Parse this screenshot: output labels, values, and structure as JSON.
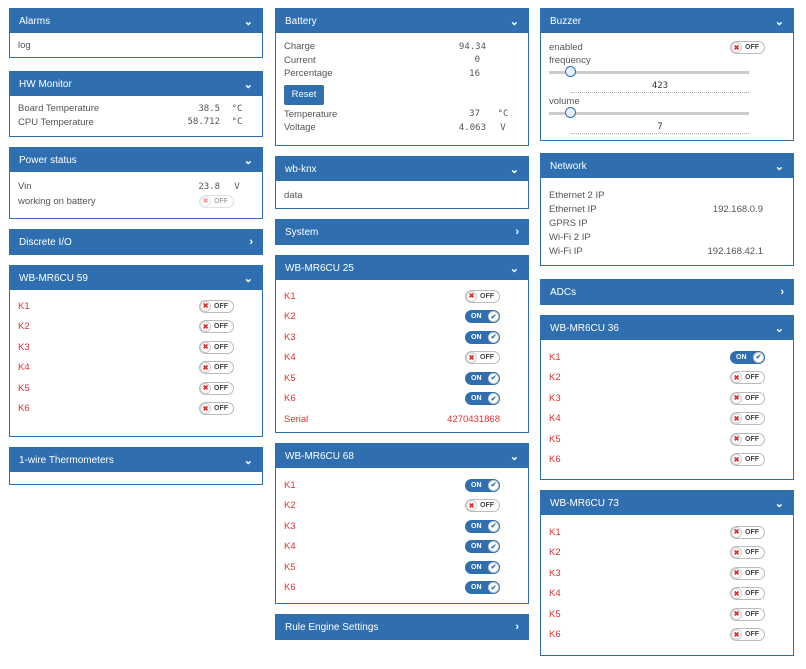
{
  "alarms": {
    "title": "Alarms",
    "log": "log"
  },
  "hw": {
    "title": "HW Monitor",
    "rows": [
      {
        "label": "Board Temperature",
        "value": "38.5",
        "unit": "°C"
      },
      {
        "label": "CPU Temperature",
        "value": "58.712",
        "unit": "°C"
      }
    ]
  },
  "power": {
    "title": "Power status",
    "vin_label": "Vin",
    "vin_value": "23.8",
    "vin_unit": "V",
    "battery_label": "working on battery",
    "battery_state": "OFF"
  },
  "discrete": {
    "title": "Discrete I/O"
  },
  "mr59": {
    "title": "WB-MR6CU 59",
    "relays": [
      {
        "label": "K1",
        "state": "OFF"
      },
      {
        "label": "K2",
        "state": "OFF"
      },
      {
        "label": "K3",
        "state": "OFF"
      },
      {
        "label": "K4",
        "state": "OFF"
      },
      {
        "label": "K5",
        "state": "OFF"
      },
      {
        "label": "K6",
        "state": "OFF"
      }
    ]
  },
  "onewire": {
    "title": "1-wire Thermometers"
  },
  "battery": {
    "title": "Battery",
    "rows": [
      {
        "label": "Charge",
        "value": "94.34",
        "unit": ""
      },
      {
        "label": "Current",
        "value": "0",
        "unit": ""
      },
      {
        "label": "Percentage",
        "value": "16",
        "unit": ""
      }
    ],
    "reset_label": "Reset",
    "rows2": [
      {
        "label": "Temperature",
        "value": "37",
        "unit": "°C"
      },
      {
        "label": "Voltage",
        "value": "4.063",
        "unit": "V"
      }
    ]
  },
  "knx": {
    "title": "wb-knx",
    "data": "data"
  },
  "system": {
    "title": "System"
  },
  "mr25": {
    "title": "WB-MR6CU 25",
    "relays": [
      {
        "label": "K1",
        "state": "OFF"
      },
      {
        "label": "K2",
        "state": "ON"
      },
      {
        "label": "K3",
        "state": "ON"
      },
      {
        "label": "K4",
        "state": "OFF"
      },
      {
        "label": "K5",
        "state": "ON"
      },
      {
        "label": "K6",
        "state": "ON"
      }
    ],
    "serial_label": "Serial",
    "serial_value": "4270431868"
  },
  "mr68": {
    "title": "WB-MR6CU 68",
    "relays": [
      {
        "label": "K1",
        "state": "ON"
      },
      {
        "label": "K2",
        "state": "OFF"
      },
      {
        "label": "K3",
        "state": "ON"
      },
      {
        "label": "K4",
        "state": "ON"
      },
      {
        "label": "K5",
        "state": "ON"
      },
      {
        "label": "K6",
        "state": "ON"
      }
    ]
  },
  "rules": {
    "title": "Rule Engine Settings"
  },
  "buzzer": {
    "title": "Buzzer",
    "enabled_label": "enabled",
    "enabled_state": "OFF",
    "frequency_label": "frequency",
    "frequency_value": "423",
    "frequency_level": 0.0,
    "volume_label": "volume",
    "volume_value": "7",
    "volume_level": 0.0
  },
  "network": {
    "title": "Network",
    "rows": [
      {
        "label": "Ethernet 2 IP",
        "value": ""
      },
      {
        "label": "Ethernet IP",
        "value": "192.168.0.9"
      },
      {
        "label": "GPRS IP",
        "value": ""
      },
      {
        "label": "Wi-Fi 2 IP",
        "value": ""
      },
      {
        "label": "Wi-Fi IP",
        "value": "192.168.42.1"
      }
    ]
  },
  "adcs": {
    "title": "ADCs"
  },
  "mr36": {
    "title": "WB-MR6CU 36",
    "relays": [
      {
        "label": "K1",
        "state": "ON"
      },
      {
        "label": "K2",
        "state": "OFF"
      },
      {
        "label": "K3",
        "state": "OFF"
      },
      {
        "label": "K4",
        "state": "OFF"
      },
      {
        "label": "K5",
        "state": "OFF"
      },
      {
        "label": "K6",
        "state": "OFF"
      }
    ]
  },
  "mr73": {
    "title": "WB-MR6CU 73",
    "relays": [
      {
        "label": "K1",
        "state": "OFF"
      },
      {
        "label": "K2",
        "state": "OFF"
      },
      {
        "label": "K3",
        "state": "OFF"
      },
      {
        "label": "K4",
        "state": "OFF"
      },
      {
        "label": "K5",
        "state": "OFF"
      },
      {
        "label": "K6",
        "state": "OFF"
      }
    ]
  },
  "icons": {
    "collapse": "chevron-down-icon",
    "expand": "chevron-right-icon",
    "off_knob": "x-icon",
    "on_knob": "check-icon"
  },
  "colors": {
    "header": "#2f6fb0",
    "relay_label": "#dd3333"
  }
}
